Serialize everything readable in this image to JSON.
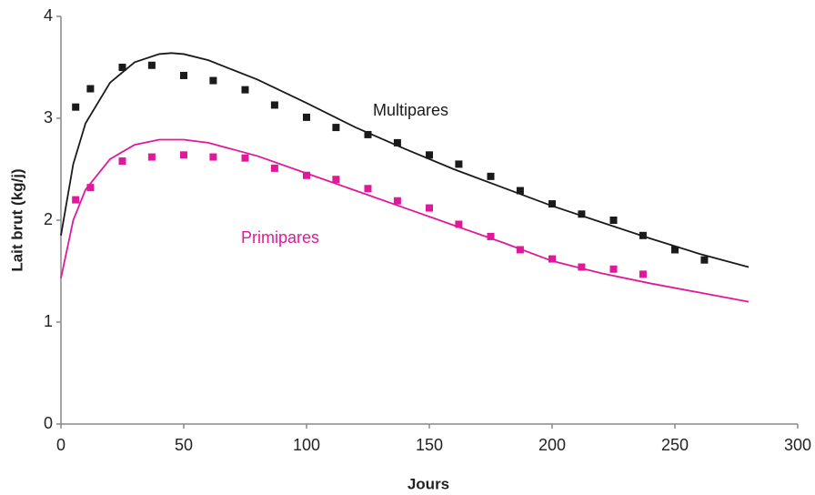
{
  "chart_data": {
    "type": "scatter",
    "xlabel": "Jours",
    "ylabel": "Lait brut (kg/j)",
    "xlim": [
      0,
      300
    ],
    "xticks": [
      0,
      50,
      100,
      150,
      200,
      250,
      300
    ],
    "ylim": [
      0,
      4
    ],
    "yticks": [
      0,
      1,
      2,
      3,
      4
    ],
    "fit_x": [
      0,
      5,
      10,
      20,
      30,
      40,
      45,
      50,
      60,
      80,
      100,
      120,
      140,
      160,
      180,
      200,
      220,
      240,
      260,
      280
    ],
    "series": [
      {
        "name": "Multipares",
        "color": "#1a1a1a",
        "x": [
          6,
          12,
          25,
          37,
          50,
          62,
          75,
          87,
          100,
          112,
          125,
          137,
          150,
          162,
          175,
          187,
          200,
          212,
          225,
          237,
          250,
          262
        ],
        "values": [
          3.11,
          3.29,
          3.5,
          3.52,
          3.42,
          3.37,
          3.28,
          3.13,
          3.01,
          2.91,
          2.84,
          2.76,
          2.64,
          2.55,
          2.43,
          2.29,
          2.16,
          2.06,
          2.0,
          1.85,
          1.71,
          1.61
        ],
        "fit_values": [
          1.85,
          2.55,
          2.95,
          3.35,
          3.55,
          3.63,
          3.64,
          3.63,
          3.57,
          3.38,
          3.15,
          2.91,
          2.7,
          2.5,
          2.32,
          2.14,
          1.98,
          1.82,
          1.67,
          1.54
        ]
      },
      {
        "name": "Primipares",
        "color": "#e0199a",
        "x": [
          6,
          12,
          25,
          37,
          50,
          62,
          75,
          87,
          100,
          112,
          125,
          137,
          150,
          162,
          175,
          187,
          200,
          212,
          225,
          237
        ],
        "values": [
          2.2,
          2.32,
          2.58,
          2.62,
          2.64,
          2.62,
          2.61,
          2.51,
          2.44,
          2.4,
          2.31,
          2.19,
          2.12,
          1.96,
          1.84,
          1.71,
          1.62,
          1.54,
          1.52,
          1.47
        ],
        "fit_values": [
          1.43,
          2.0,
          2.3,
          2.6,
          2.74,
          2.79,
          2.79,
          2.79,
          2.76,
          2.63,
          2.46,
          2.29,
          2.12,
          1.95,
          1.78,
          1.6,
          1.48,
          1.38,
          1.29,
          1.2
        ]
      }
    ]
  }
}
